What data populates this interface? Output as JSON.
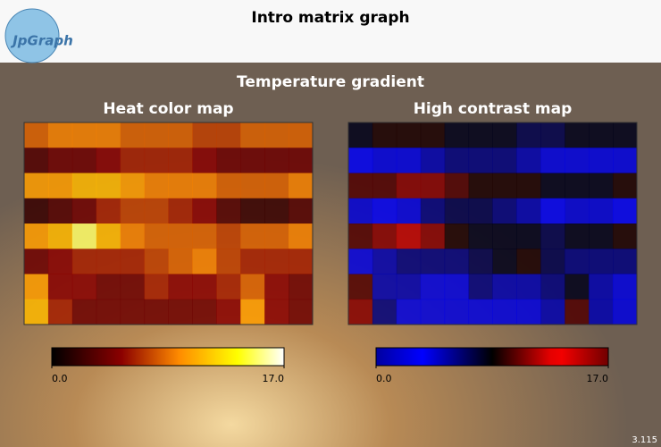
{
  "header": {
    "title": "Intro matrix graph",
    "logo": "JpGraph"
  },
  "subtitle": "Temperature gradient",
  "version": "3.115",
  "chart_data": [
    {
      "type": "heatmap",
      "title": "Heat color map",
      "colormap": "heat",
      "values": [
        [
          8,
          9,
          9,
          9,
          8,
          8,
          8,
          7,
          7,
          8,
          8,
          8
        ],
        [
          3,
          4,
          4,
          5,
          6,
          6,
          6,
          5,
          4,
          4,
          4,
          4
        ],
        [
          10,
          10,
          11,
          11,
          10,
          9,
          9,
          9,
          8,
          8,
          8,
          9
        ],
        [
          2,
          3,
          4,
          6,
          7,
          7,
          6,
          5,
          3,
          2,
          2,
          3
        ],
        [
          10,
          11,
          15,
          11,
          9,
          8,
          8,
          8,
          7,
          8,
          8,
          9
        ],
        [
          4,
          5,
          6,
          6,
          6,
          7,
          8,
          9,
          7,
          6,
          6,
          6
        ],
        [
          10,
          5,
          5,
          4,
          4,
          6,
          5,
          5,
          6,
          8,
          5,
          4
        ],
        [
          11,
          6,
          4,
          4,
          4,
          4,
          4,
          4,
          5,
          10,
          5,
          4
        ]
      ],
      "xlim": [
        0,
        17
      ],
      "xticks": [
        {
          "value": 0,
          "label": "0.0"
        },
        {
          "value": 17,
          "label": "17.0"
        }
      ]
    },
    {
      "type": "heatmap",
      "title": "High contrast map",
      "colormap": "high-contrast",
      "values": [
        [
          8,
          9,
          9,
          9,
          8,
          8,
          8,
          7,
          7,
          8,
          8,
          8
        ],
        [
          3,
          4,
          4,
          5,
          6,
          6,
          6,
          5,
          4,
          4,
          4,
          4
        ],
        [
          10,
          10,
          11,
          11,
          10,
          9,
          9,
          9,
          8,
          8,
          8,
          9
        ],
        [
          2,
          3,
          4,
          6,
          7,
          7,
          6,
          5,
          3,
          2,
          2,
          3
        ],
        [
          10,
          11,
          15,
          11,
          9,
          8,
          8,
          8,
          7,
          8,
          8,
          9
        ],
        [
          4,
          5,
          6,
          6,
          6,
          7,
          8,
          9,
          7,
          6,
          6,
          6
        ],
        [
          10,
          5,
          5,
          4,
          4,
          6,
          5,
          5,
          6,
          8,
          5,
          4
        ],
        [
          11,
          6,
          4,
          4,
          4,
          4,
          4,
          4,
          5,
          10,
          5,
          4
        ]
      ],
      "xlim": [
        0,
        17
      ],
      "xticks": [
        {
          "value": 0,
          "label": "0.0"
        },
        {
          "value": 17,
          "label": "17.0"
        }
      ]
    }
  ]
}
